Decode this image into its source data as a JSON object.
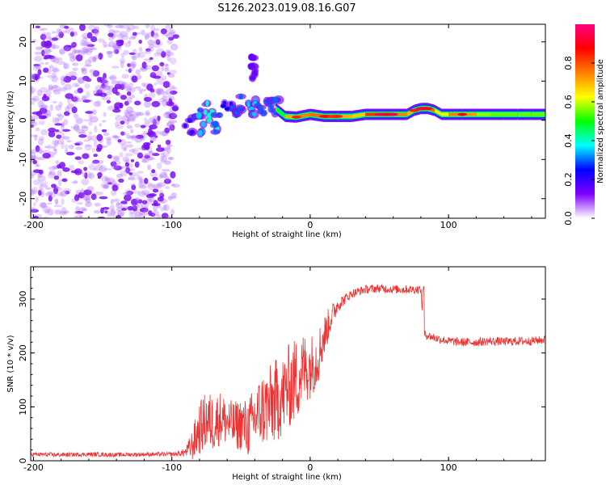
{
  "title": "S126.2023.019.08.16.G07",
  "chart_data": [
    {
      "type": "heatmap",
      "title": "",
      "xlabel": "Height of straight line (km)",
      "ylabel": "Frequency (Hz)",
      "xlim": [
        -202,
        170
      ],
      "ylim": [
        -25,
        24.5
      ],
      "xticks": [
        -200,
        -100,
        0,
        100
      ],
      "yticks": [
        -20,
        -10,
        0,
        10,
        20
      ],
      "colorbar": {
        "label": "Normalized spectral amplitude",
        "range": [
          0.0,
          1.0
        ],
        "ticks": [
          "0.0",
          "0.2",
          "0.4",
          "0.6",
          "0.8"
        ],
        "tick_values": [
          0.0,
          0.2,
          0.4,
          0.6,
          0.8
        ],
        "colors": [
          "#ffffff",
          "#8000ff",
          "#0000ff",
          "#00ffff",
          "#00ff00",
          "#ffff00",
          "#ff8000",
          "#ff0000",
          "#ff0080"
        ]
      },
      "noise_region": {
        "x": [
          -202,
          -97
        ],
        "freq": [
          -25,
          24.5
        ],
        "amplitude": [
          0.02,
          0.15
        ]
      },
      "transition_blobs": [
        {
          "x": -88,
          "y": -2,
          "a": 0.2
        },
        {
          "x": -82,
          "y": 1,
          "a": 0.3
        },
        {
          "x": -78,
          "y": -1,
          "a": 0.35
        },
        {
          "x": -73,
          "y": 2,
          "a": 0.4
        },
        {
          "x": -70,
          "y": 0,
          "a": 0.4
        },
        {
          "x": -66,
          "y": -1,
          "a": 0.3
        },
        {
          "x": -60,
          "y": 3,
          "a": 0.25
        },
        {
          "x": -55,
          "y": 1,
          "a": 0.3
        },
        {
          "x": -50,
          "y": 4,
          "a": 0.3
        },
        {
          "x": -45,
          "y": 3,
          "a": 0.35
        },
        {
          "x": -40,
          "y": 4,
          "a": 0.35
        },
        {
          "x": -35,
          "y": 4,
          "a": 0.3
        },
        {
          "x": -30,
          "y": 5,
          "a": 0.3
        },
        {
          "x": -25,
          "y": 3,
          "a": 0.3
        },
        {
          "x": -40,
          "y": 14,
          "a": 0.15
        },
        {
          "x": -42,
          "y": 13,
          "a": 0.15
        }
      ],
      "ridge": {
        "x": [
          -25,
          -18,
          -10,
          0,
          10,
          20,
          30,
          40,
          50,
          60,
          70,
          75,
          80,
          85,
          90,
          95,
          100,
          110,
          120,
          130,
          140,
          150,
          160,
          170
        ],
        "freq": [
          3,
          1,
          0.8,
          1.5,
          1,
          1,
          1,
          1.5,
          1.5,
          1.5,
          1.5,
          2.5,
          3,
          3,
          2.5,
          1.5,
          1.5,
          1.5,
          1.5,
          1.5,
          1.5,
          1.5,
          1.5,
          1.5
        ],
        "amplitude": [
          0.35,
          0.6,
          0.8,
          0.7,
          0.85,
          0.8,
          0.6,
          0.75,
          0.9,
          0.9,
          0.6,
          0.8,
          0.9,
          0.85,
          0.7,
          0.6,
          0.65,
          0.85,
          0.6,
          0.55,
          0.55,
          0.55,
          0.55,
          0.55
        ]
      }
    },
    {
      "type": "line",
      "title": "",
      "xlabel": "Height of straight line (km)",
      "ylabel": "SNR (10 * v/v)",
      "xlim": [
        -202,
        170
      ],
      "ylim": [
        0,
        360
      ],
      "xticks": [
        -200,
        -100,
        0,
        100
      ],
      "yticks": [
        0,
        100,
        200,
        300
      ],
      "series": [
        {
          "color": "#ee3333",
          "x": [
            -202,
            -180,
            -160,
            -140,
            -120,
            -100,
            -95,
            -90,
            -85,
            -80,
            -75,
            -70,
            -65,
            -60,
            -55,
            -50,
            -45,
            -40,
            -35,
            -30,
            -25,
            -20,
            -15,
            -10,
            -5,
            0,
            5,
            10,
            15,
            20,
            25,
            30,
            40,
            50,
            60,
            70,
            80,
            82,
            90,
            100,
            110,
            120,
            130,
            140,
            150,
            160,
            170
          ],
          "y": [
            12,
            11,
            12,
            11,
            12,
            12,
            13,
            16,
            30,
            60,
            75,
            70,
            80,
            72,
            65,
            68,
            60,
            80,
            95,
            100,
            110,
            120,
            140,
            150,
            170,
            175,
            190,
            230,
            265,
            290,
            300,
            310,
            318,
            320,
            318,
            318,
            318,
            235,
            228,
            222,
            220,
            220,
            222,
            221,
            222,
            222,
            225
          ],
          "noise": [
            4,
            4,
            4,
            4,
            4,
            4,
            5,
            8,
            30,
            50,
            55,
            55,
            50,
            45,
            45,
            50,
            55,
            60,
            70,
            75,
            80,
            75,
            80,
            80,
            70,
            60,
            55,
            40,
            25,
            15,
            10,
            8,
            8,
            8,
            8,
            8,
            8,
            8,
            8,
            8,
            8,
            8,
            8,
            8,
            8,
            8,
            8
          ]
        }
      ]
    }
  ]
}
